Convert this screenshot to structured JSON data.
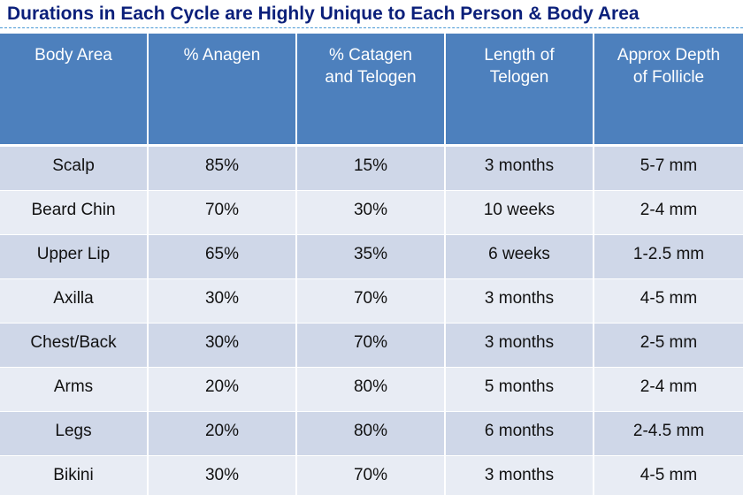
{
  "title": "Durations in Each Cycle are Highly Unique to Each Person & Body Area",
  "table": {
    "headers": [
      [
        "Body Area"
      ],
      [
        "% Anagen"
      ],
      [
        "% Catagen",
        "and Telogen"
      ],
      [
        "Length of",
        "Telogen"
      ],
      [
        "Approx Depth",
        "of Follicle"
      ]
    ],
    "rows": [
      [
        "Scalp",
        "85%",
        "15%",
        "3 months",
        "5-7 mm"
      ],
      [
        "Beard Chin",
        "70%",
        "30%",
        "10 weeks",
        "2-4 mm"
      ],
      [
        "Upper Lip",
        "65%",
        "35%",
        "6 weeks",
        "1-2.5 mm"
      ],
      [
        "Axilla",
        "30%",
        "70%",
        "3 months",
        "4-5 mm"
      ],
      [
        "Chest/Back",
        "30%",
        "70%",
        "3 months",
        "2-5 mm"
      ],
      [
        "Arms",
        "20%",
        "80%",
        "5 months",
        "2-4 mm"
      ],
      [
        "Legs",
        "20%",
        "80%",
        "6 months",
        "2-4.5 mm"
      ],
      [
        "Bikini",
        "30%",
        "70%",
        "3 months",
        "4-5 mm"
      ]
    ]
  },
  "colors": {
    "title": "#0a1f7a",
    "header_bg": "#4d80bd",
    "row_dark": "#cfd7e8",
    "row_light": "#e8ecf4"
  }
}
